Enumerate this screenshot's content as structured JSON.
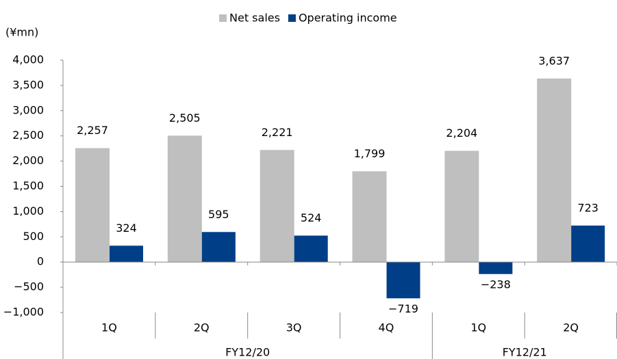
{
  "chart_data": {
    "type": "bar",
    "unit": "(¥mn)",
    "groups": [
      {
        "name": "FY12/20",
        "categories": [
          "1Q",
          "2Q",
          "3Q",
          "4Q"
        ]
      },
      {
        "name": "FY12/21",
        "categories": [
          "1Q",
          "2Q"
        ]
      }
    ],
    "series": [
      {
        "name": "Net sales",
        "color": "#bfbfbf",
        "values": [
          2257,
          2505,
          2221,
          1799,
          2204,
          3637
        ],
        "value_labels": [
          "2,257",
          "2,505",
          "2,221",
          "1,799",
          "2,204",
          "3,637"
        ]
      },
      {
        "name": "Operating income",
        "color": "#003f87",
        "values": [
          324,
          595,
          524,
          -719,
          -238,
          723
        ],
        "value_labels": [
          "324",
          "595",
          "524",
          "−719",
          "−238",
          "723"
        ]
      }
    ],
    "ylim": [
      -1000,
      4000
    ],
    "yticks": [
      {
        "value": -1000,
        "label": "−1,000"
      },
      {
        "value": -500,
        "label": "−500"
      },
      0,
      500,
      {
        "value": 1000,
        "label": "1,000"
      },
      {
        "value": 1500,
        "label": "1,500"
      },
      {
        "value": 2000,
        "label": "2,000"
      },
      {
        "value": 2500,
        "label": "2,500"
      },
      {
        "value": 3000,
        "label": "3,000"
      },
      {
        "value": 3500,
        "label": "3,500"
      },
      {
        "value": 4000,
        "label": "4,000"
      }
    ],
    "legend": "top"
  }
}
